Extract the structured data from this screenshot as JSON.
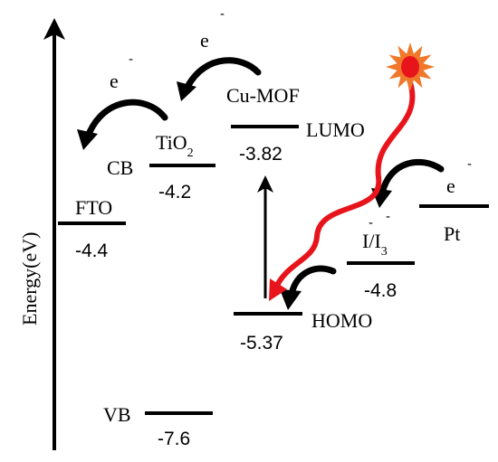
{
  "axis": {
    "label": "Energy(eV)"
  },
  "levels": {
    "fto": {
      "name": "FTO",
      "value": "-4.4"
    },
    "tio2": {
      "name": "TiO",
      "subscript": "2",
      "value": "-4.2",
      "band": "CB"
    },
    "vb": {
      "name": "VB",
      "value": "-7.6"
    },
    "lumo": {
      "name": "LUMO",
      "value": "-3.82",
      "material": "Cu-MOF"
    },
    "homo": {
      "name": "HOMO",
      "value": "-5.37"
    },
    "redox": {
      "name_left": "I",
      "name_mid": "/I",
      "subscript": "3",
      "minus1": "-",
      "minus2": "-",
      "value": "-4.8"
    },
    "pt": {
      "name": "Pt"
    }
  },
  "electrons": {
    "e1": {
      "letter": "e",
      "charge": "-"
    },
    "e2": {
      "letter": "e",
      "charge": "-"
    },
    "e3": {
      "letter": "e",
      "charge": "-"
    }
  },
  "colors": {
    "sun_outer": "#f0782a",
    "sun_inner": "#e8141c",
    "photon": "#e8141c",
    "ink": "#000000"
  }
}
